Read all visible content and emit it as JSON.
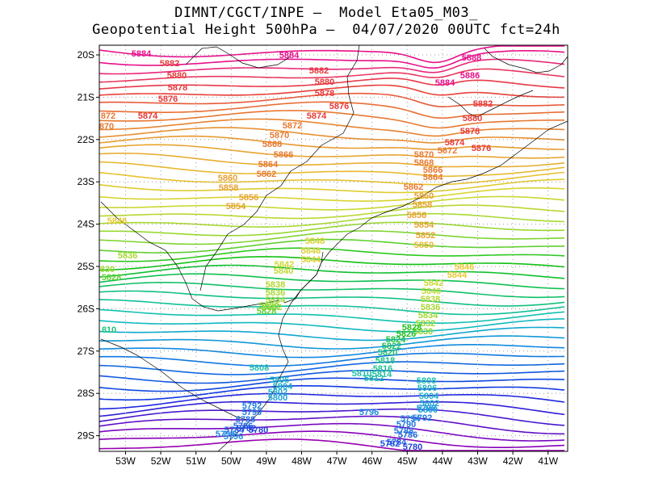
{
  "title": {
    "line1": "DIMNT/CGCT/INPE —  Model Eta05_M03_",
    "line2": "Geopotential Height 500hPa —  04/07/2020 00UTC fct=24h"
  },
  "axes": {
    "lon_labels": [
      "53W",
      "52W",
      "51W",
      "50W",
      "49W",
      "48W",
      "47W",
      "46W",
      "45W",
      "44W",
      "43W",
      "42W",
      "41W"
    ],
    "lat_labels": [
      "20S",
      "21S",
      "22S",
      "23S",
      "24S",
      "25S",
      "26S",
      "27S",
      "28S",
      "29S"
    ]
  },
  "contour_labels": [
    {
      "text": "5884",
      "color": "#e8108c"
    },
    {
      "text": "5884",
      "color": "#e8108c"
    },
    {
      "text": "5888",
      "color": "#e8108c"
    },
    {
      "text": "5884",
      "color": "#e8108c"
    },
    {
      "text": "5886",
      "color": "#e8108c"
    },
    {
      "text": "5882",
      "color": "#e83838"
    },
    {
      "text": "5882",
      "color": "#e83838"
    },
    {
      "text": "5880",
      "color": "#e83838"
    },
    {
      "text": "5880",
      "color": "#e83838"
    },
    {
      "text": "5878",
      "color": "#e83838"
    },
    {
      "text": "5878",
      "color": "#e83838"
    },
    {
      "text": "5876",
      "color": "#e83838"
    },
    {
      "text": "5876",
      "color": "#e83838"
    },
    {
      "text": "5874",
      "color": "#e83838"
    },
    {
      "text": "5874",
      "color": "#e83838"
    },
    {
      "text": "5882",
      "color": "#e83838"
    },
    {
      "text": "5880",
      "color": "#e83838"
    },
    {
      "text": "5878",
      "color": "#e83838"
    },
    {
      "text": "5874",
      "color": "#e83838"
    },
    {
      "text": "5876",
      "color": "#e83838"
    },
    {
      "text": "872",
      "color": "#e87830"
    },
    {
      "text": "870",
      "color": "#e87830"
    },
    {
      "text": "5872",
      "color": "#e87830"
    },
    {
      "text": "5870",
      "color": "#e87830"
    },
    {
      "text": "5868",
      "color": "#e87830"
    },
    {
      "text": "5866",
      "color": "#e87830"
    },
    {
      "text": "5864",
      "color": "#e87830"
    },
    {
      "text": "5862",
      "color": "#e87830"
    },
    {
      "text": "5870",
      "color": "#e87830"
    },
    {
      "text": "5872",
      "color": "#e87830"
    },
    {
      "text": "5868",
      "color": "#e87830"
    },
    {
      "text": "5866",
      "color": "#e87830"
    },
    {
      "text": "5864",
      "color": "#e87830"
    },
    {
      "text": "5862",
      "color": "#e87830"
    },
    {
      "text": "5860",
      "color": "#e8a030"
    },
    {
      "text": "5858",
      "color": "#e8a030"
    },
    {
      "text": "5856",
      "color": "#e8a030"
    },
    {
      "text": "5854",
      "color": "#e8a030"
    },
    {
      "text": "5860",
      "color": "#e8a030"
    },
    {
      "text": "5858",
      "color": "#e8a030"
    },
    {
      "text": "5856",
      "color": "#e8a030"
    },
    {
      "text": "5854",
      "color": "#e8a030"
    },
    {
      "text": "5852",
      "color": "#e8a030"
    },
    {
      "text": "5850",
      "color": "#e8b830"
    },
    {
      "text": "5846",
      "color": "#e8c830"
    },
    {
      "text": "5848",
      "color": "#d8d030"
    },
    {
      "text": "5846",
      "color": "#d8d030"
    },
    {
      "text": "5844",
      "color": "#d8d030"
    },
    {
      "text": "5842",
      "color": "#d0d830"
    },
    {
      "text": "5840",
      "color": "#c0d830"
    },
    {
      "text": "5846",
      "color": "#e8c830"
    },
    {
      "text": "5844",
      "color": "#e8c830"
    },
    {
      "text": "5836",
      "color": "#a8d830"
    },
    {
      "text": "830",
      "color": "#98d830"
    },
    {
      "text": "5828",
      "color": "#60d030"
    },
    {
      "text": "5842",
      "color": "#c8d830"
    },
    {
      "text": "5840",
      "color": "#c0d830"
    },
    {
      "text": "5838",
      "color": "#b0d830"
    },
    {
      "text": "5836",
      "color": "#a8d830"
    },
    {
      "text": "5834",
      "color": "#a0d830"
    },
    {
      "text": "5832",
      "color": "#98d830"
    },
    {
      "text": "5830",
      "color": "#88d830"
    },
    {
      "text": "5838",
      "color": "#b0d830"
    },
    {
      "text": "5836",
      "color": "#a8d830"
    },
    {
      "text": "5834",
      "color": "#a0d830"
    },
    {
      "text": "5832",
      "color": "#98d830"
    },
    {
      "text": "5830",
      "color": "#88d830"
    },
    {
      "text": "5828",
      "color": "#60d030"
    },
    {
      "text": "810",
      "color": "#20c878"
    },
    {
      "text": "5828",
      "color": "#20c020"
    },
    {
      "text": "5826",
      "color": "#20c020"
    },
    {
      "text": "5824",
      "color": "#20c040"
    },
    {
      "text": "5822",
      "color": "#20c060"
    },
    {
      "text": "5820",
      "color": "#20c070"
    },
    {
      "text": "5818",
      "color": "#20c080"
    },
    {
      "text": "5816",
      "color": "#20c090"
    },
    {
      "text": "5814",
      "color": "#20c0a0"
    },
    {
      "text": "5810",
      "color": "#20c0a8"
    },
    {
      "text": "5812",
      "color": "#20c0a8"
    },
    {
      "text": "5808",
      "color": "#20c0b0"
    },
    {
      "text": "5806",
      "color": "#20b8c0"
    },
    {
      "text": "5804",
      "color": "#20b0c8"
    },
    {
      "text": "5802",
      "color": "#20a8d0"
    },
    {
      "text": "5800",
      "color": "#20a0d8"
    },
    {
      "text": "5808",
      "color": "#20c0b0"
    },
    {
      "text": "5806",
      "color": "#20b8c0"
    },
    {
      "text": "5804",
      "color": "#20b0c8"
    },
    {
      "text": "5802",
      "color": "#20a8d0"
    },
    {
      "text": "5800",
      "color": "#20a0d8"
    },
    {
      "text": "5798",
      "color": "#2098e0"
    },
    {
      "text": "5796",
      "color": "#2090e0"
    },
    {
      "text": "5794",
      "color": "#2088e0"
    },
    {
      "text": "5792",
      "color": "#2080e0"
    },
    {
      "text": "5790",
      "color": "#2078e0"
    },
    {
      "text": "5788",
      "color": "#2070e0"
    },
    {
      "text": "5786",
      "color": "#2068e0"
    },
    {
      "text": "5784",
      "color": "#2060e0"
    },
    {
      "text": "5782",
      "color": "#2050e0"
    },
    {
      "text": "5780",
      "color": "#2040e0"
    },
    {
      "text": "5796",
      "color": "#2090e0"
    },
    {
      "text": "5794",
      "color": "#2088e0"
    },
    {
      "text": "5792",
      "color": "#2080e0"
    },
    {
      "text": "5790",
      "color": "#2078e0"
    },
    {
      "text": "5788",
      "color": "#2070e0"
    },
    {
      "text": "5786",
      "color": "#2068e0"
    },
    {
      "text": "5784",
      "color": "#2060e0"
    },
    {
      "text": "5782",
      "color": "#2050e0"
    },
    {
      "text": "5780",
      "color": "#2040e0"
    }
  ],
  "colors": {
    "frame": "#000000",
    "grid": "#9a9a9a",
    "coast": "#000000"
  }
}
